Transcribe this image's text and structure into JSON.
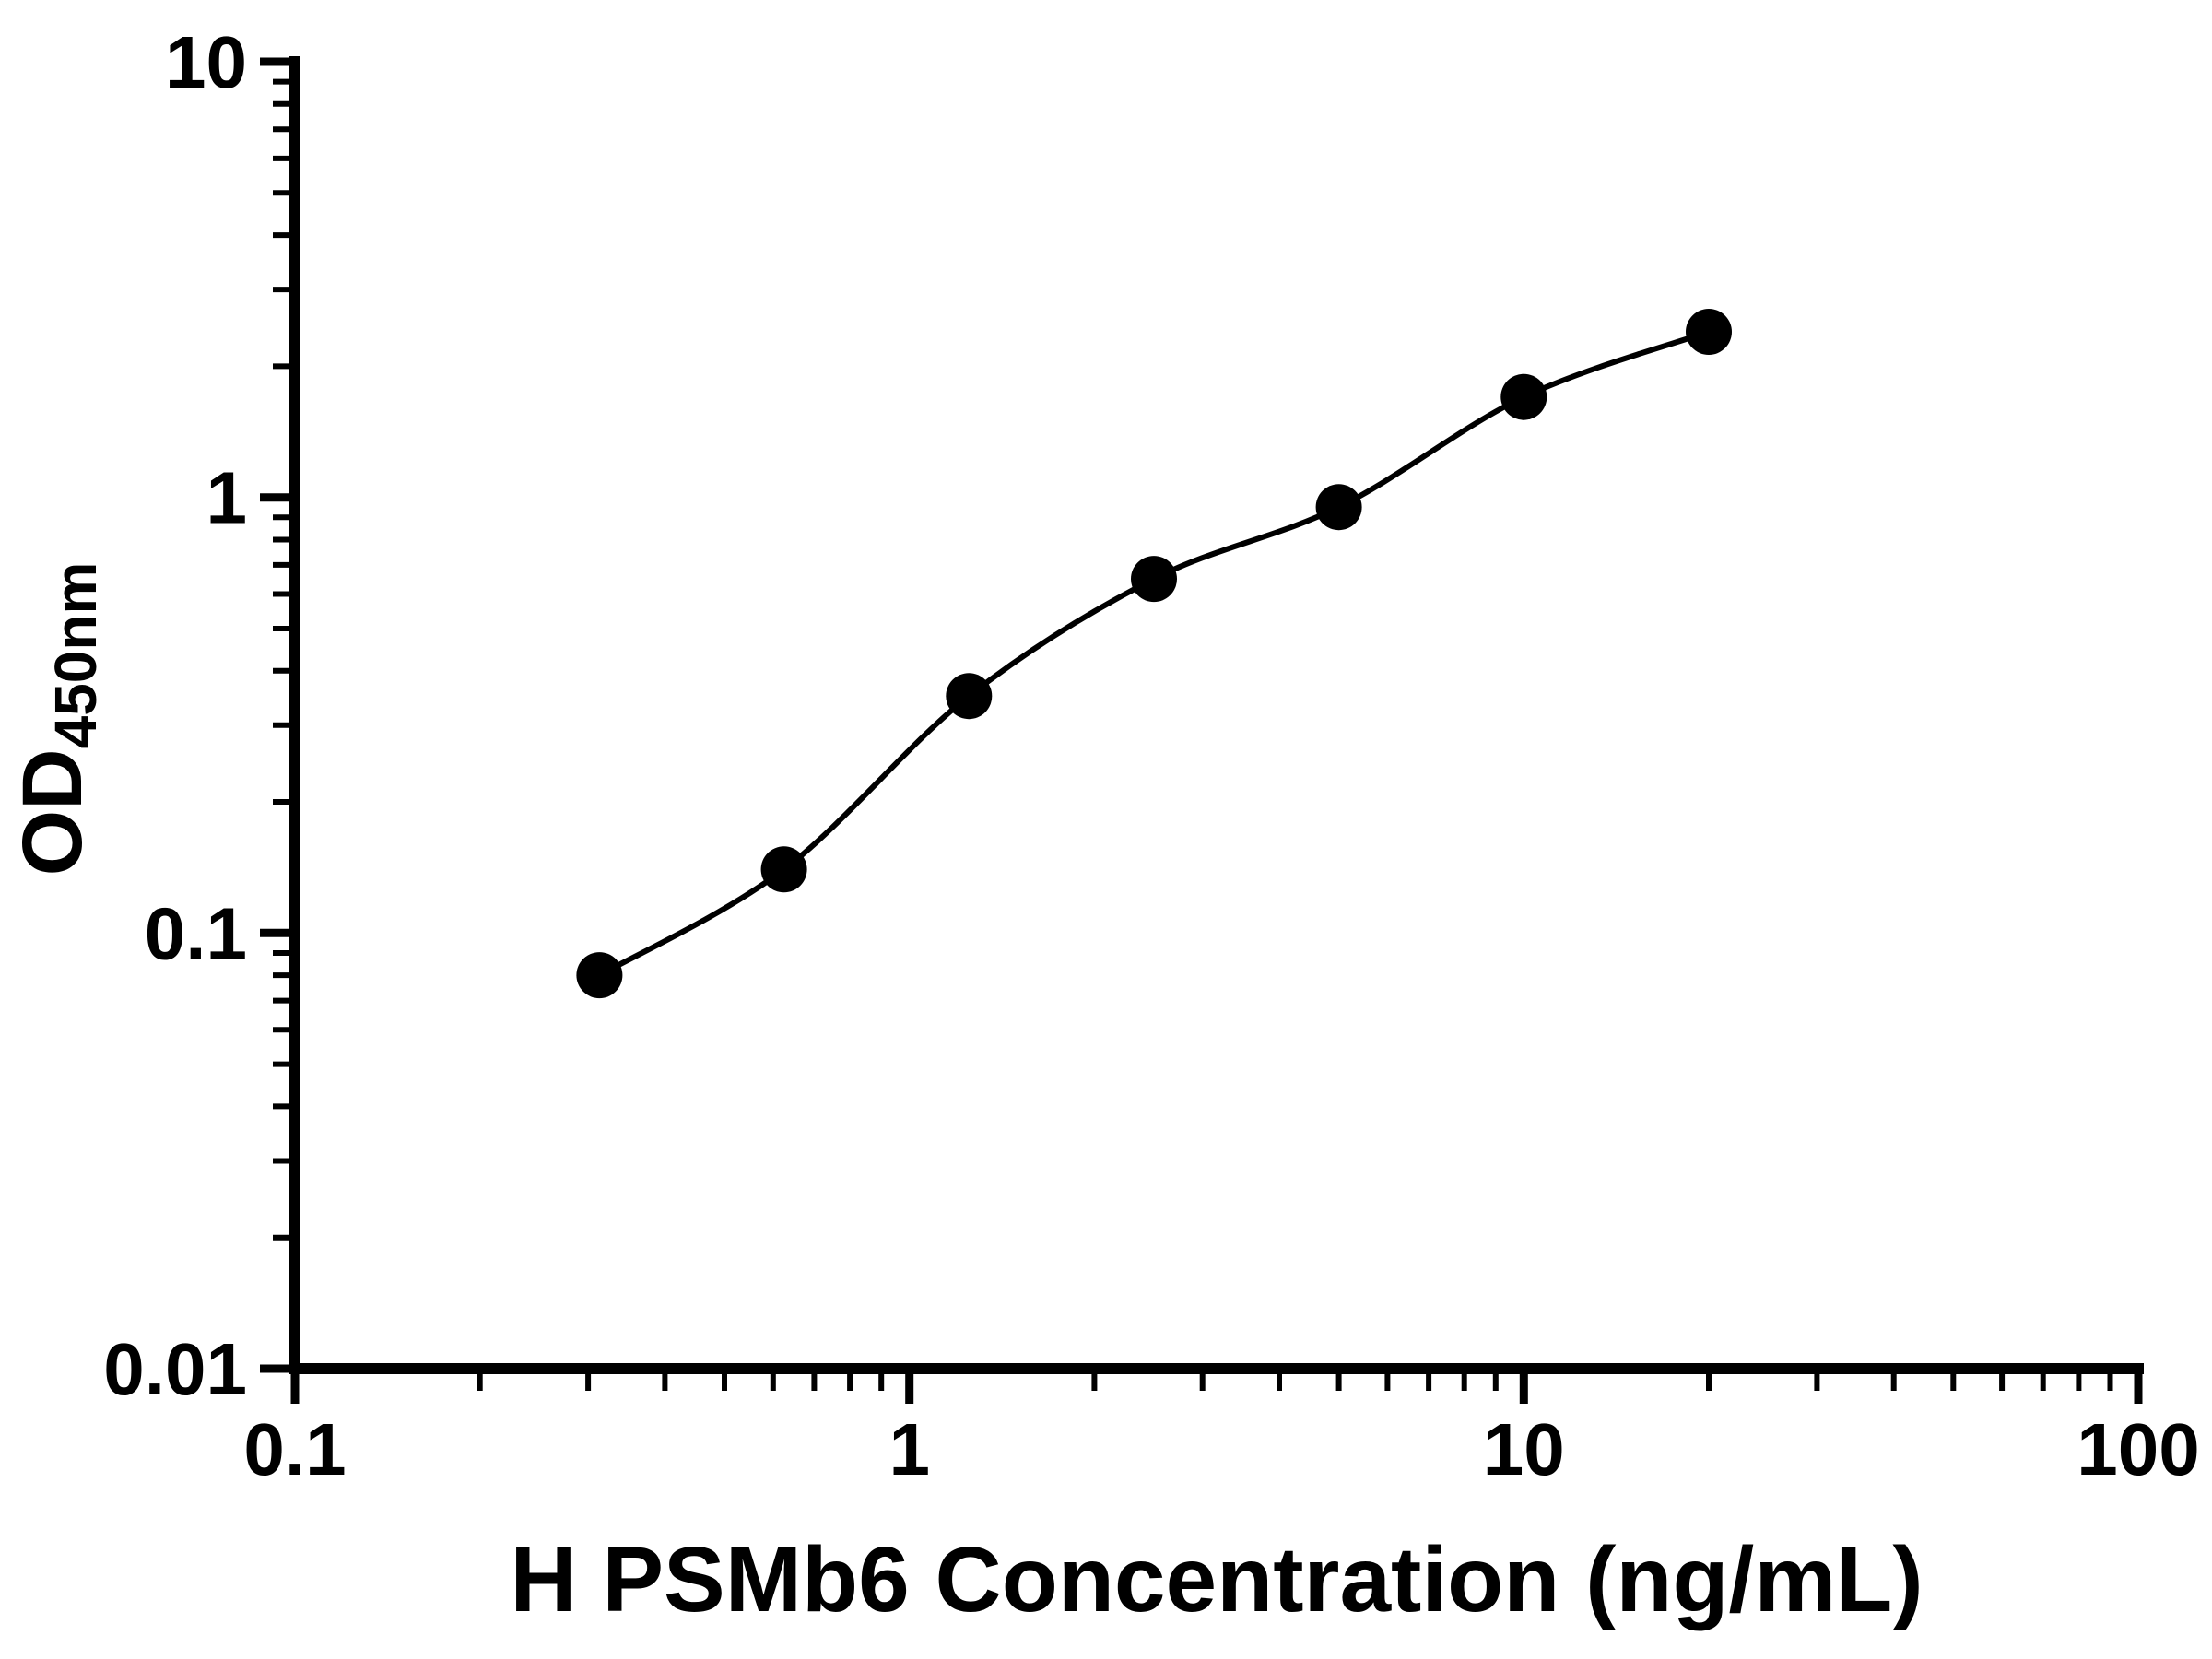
{
  "chart_data": {
    "type": "scatter",
    "title": "",
    "xlabel": "H PSMb6 Concentration (ng/mL)",
    "ylabel": "OD",
    "ylabel_subscript": "450nm",
    "x_scale": "log10",
    "y_scale": "log10",
    "xlim": [
      0.1,
      100
    ],
    "ylim": [
      0.01,
      10
    ],
    "x_ticks": [
      0.1,
      1,
      10,
      100
    ],
    "x_tick_labels": [
      "0.1",
      "1",
      "10",
      "100"
    ],
    "y_ticks": [
      0.01,
      0.1,
      1,
      10
    ],
    "y_tick_labels": [
      "0.01",
      "0.1",
      "1",
      "10"
    ],
    "x": [
      0.313,
      0.625,
      1.25,
      2.5,
      5,
      10,
      20
    ],
    "y": [
      0.08,
      0.14,
      0.35,
      0.65,
      0.95,
      1.7,
      2.4
    ],
    "has_fit_curve": true,
    "grid": false,
    "legend": "none",
    "marker_color": "#000000",
    "line_color": "#000000",
    "axis_color": "#000000"
  }
}
